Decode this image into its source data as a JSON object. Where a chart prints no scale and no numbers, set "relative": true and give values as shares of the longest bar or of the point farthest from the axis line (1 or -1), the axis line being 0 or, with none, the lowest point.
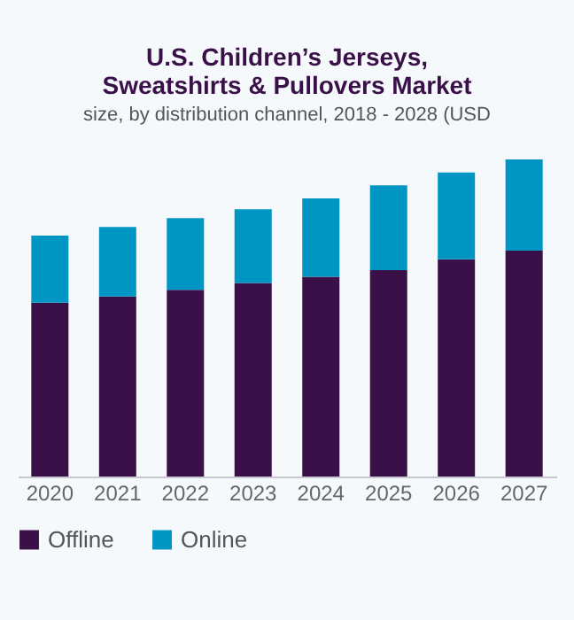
{
  "chart_data": {
    "type": "bar",
    "title": "U.S. Children’s Jerseys, Sweatshirts & Pullovers Market",
    "subtitle": "size, by distribution channel, 2018 - 2028 (USD",
    "categories": [
      "2020",
      "2021",
      "2022",
      "2023",
      "2024",
      "2025",
      "2026",
      "2027"
    ],
    "relative": true,
    "stacked": true,
    "legend": "bottom",
    "series": [
      {
        "name": "Offline",
        "color": "#3a1048",
        "values": [
          0.548,
          0.568,
          0.589,
          0.61,
          0.63,
          0.651,
          0.685,
          0.712
        ]
      },
      {
        "name": "Online",
        "color": "#0096c3",
        "values": [
          0.212,
          0.219,
          0.226,
          0.233,
          0.247,
          0.267,
          0.274,
          0.288
        ]
      }
    ]
  }
}
